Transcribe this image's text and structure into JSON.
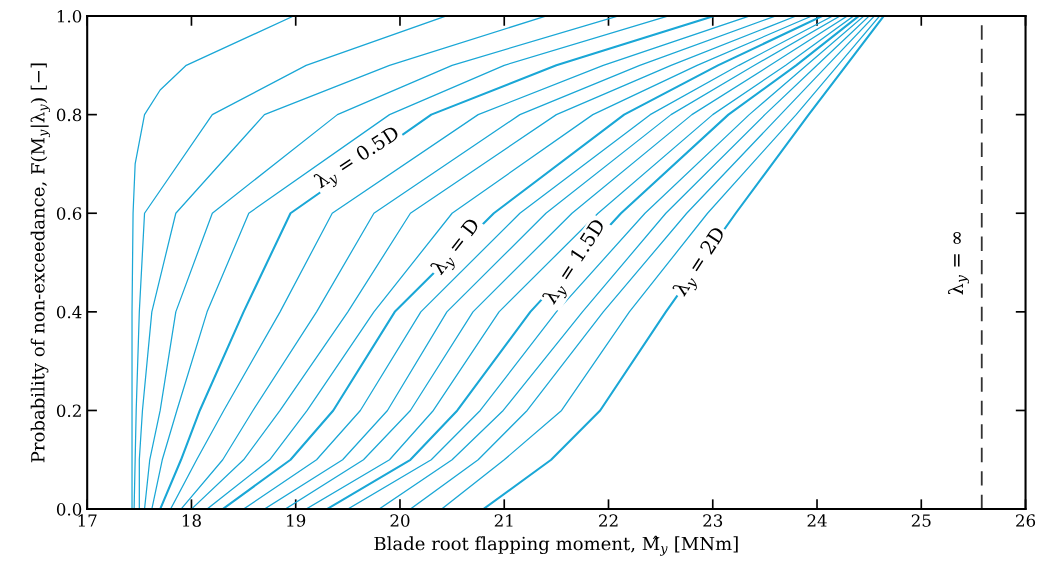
{
  "chart_data": {
    "type": "line",
    "xlabel": "Blade root flapping moment, M̂$_{y}$ [MNm]",
    "ylabel": "Probability of non-exceedance, F(M$_{y}$|λ$_{y}$) [−]",
    "xlim": [
      17,
      26
    ],
    "xticks": [
      17,
      18,
      19,
      20,
      21,
      22,
      23,
      24,
      25,
      26
    ],
    "ylim": [
      0,
      1
    ],
    "yticks": [
      {
        "value": 0,
        "label": "0.0"
      },
      {
        "value": 0.2,
        "label": "0.2"
      },
      {
        "value": 0.4,
        "label": "0.4"
      },
      {
        "value": 0.6,
        "label": "0.6"
      },
      {
        "value": 0.8,
        "label": "0.8"
      },
      {
        "value": 1.0,
        "label": "1.0"
      }
    ],
    "grid": false,
    "marker": "none",
    "line_style": "solid",
    "series": [
      {
        "color": "#1aa7d6",
        "x": [
          17.43,
          17.43,
          17.43,
          17.44,
          17.46,
          17.55,
          17.7,
          17.95,
          18.98
        ],
        "values": [
          0,
          0.2,
          0.4,
          0.6,
          0.7,
          0.8,
          0.85,
          0.9,
          1.0
        ]
      },
      {
        "color": "#1aa7d6",
        "x": [
          17.45,
          17.46,
          17.47,
          17.5,
          17.55,
          18.2,
          19.1,
          20.44
        ],
        "values": [
          0,
          0.1,
          0.2,
          0.4,
          0.6,
          0.8,
          0.9,
          1.0
        ]
      },
      {
        "color": "#1aa7d6",
        "x": [
          17.5,
          17.5,
          17.53,
          17.62,
          17.85,
          18.7,
          19.9,
          21.4
        ],
        "values": [
          0,
          0.1,
          0.2,
          0.4,
          0.6,
          0.8,
          0.9,
          1.0
        ]
      },
      {
        "color": "#1aa7d6",
        "x": [
          17.55,
          17.6,
          17.7,
          17.85,
          18.2,
          19.4,
          20.5,
          22.09
        ],
        "values": [
          0,
          0.1,
          0.2,
          0.4,
          0.6,
          0.8,
          0.9,
          1.0
        ]
      },
      {
        "color": "#1aa7d6",
        "x": [
          17.62,
          17.72,
          17.86,
          18.15,
          18.55,
          19.9,
          21.0,
          22.57
        ],
        "values": [
          0,
          0.1,
          0.2,
          0.4,
          0.6,
          0.8,
          0.9,
          1.0
        ]
      },
      {
        "color": "#1aa7d6",
        "x": [
          17.7,
          17.9,
          18.08,
          18.5,
          18.95,
          20.3,
          21.5,
          23.01
        ],
        "values": [
          0,
          0.1,
          0.2,
          0.4,
          0.6,
          0.8,
          0.9,
          1.0
        ]
      },
      {
        "color": "#1aa7d6",
        "x": [
          17.8,
          18.05,
          18.31,
          18.85,
          19.35,
          20.75,
          21.95,
          23.35
        ],
        "values": [
          0,
          0.1,
          0.2,
          0.4,
          0.6,
          0.8,
          0.9,
          1.0
        ]
      },
      {
        "color": "#1aa7d6",
        "x": [
          17.9,
          18.3,
          18.59,
          19.2,
          19.75,
          21.15,
          22.3,
          23.6
        ],
        "values": [
          0,
          0.1,
          0.2,
          0.4,
          0.6,
          0.8,
          0.9,
          1.0
        ]
      },
      {
        "color": "#1aa7d6",
        "x": [
          18.0,
          18.5,
          18.85,
          19.5,
          20.1,
          21.5,
          22.6,
          23.8
        ],
        "values": [
          0,
          0.1,
          0.2,
          0.4,
          0.6,
          0.8,
          0.9,
          1.0
        ]
      },
      {
        "color": "#1aa7d6",
        "x": [
          18.15,
          18.75,
          19.11,
          19.75,
          20.5,
          21.85,
          22.85,
          23.95
        ],
        "values": [
          0,
          0.1,
          0.2,
          0.4,
          0.6,
          0.8,
          0.9,
          1.0
        ]
      },
      {
        "color": "#1aa7d6",
        "x": [
          18.3,
          18.95,
          19.36,
          19.95,
          20.9,
          22.15,
          23.05,
          24.05
        ],
        "values": [
          0,
          0.1,
          0.2,
          0.4,
          0.6,
          0.8,
          0.9,
          1.0
        ]
      },
      {
        "color": "#1aa7d6",
        "x": [
          18.5,
          19.2,
          19.62,
          20.2,
          21.15,
          22.4,
          23.25,
          24.15
        ],
        "values": [
          0,
          0.1,
          0.2,
          0.4,
          0.6,
          0.8,
          0.9,
          1.0
        ]
      },
      {
        "color": "#1aa7d6",
        "x": [
          18.7,
          19.45,
          19.88,
          20.45,
          21.4,
          22.6,
          23.4,
          24.22
        ],
        "values": [
          0,
          0.1,
          0.2,
          0.4,
          0.6,
          0.8,
          0.9,
          1.0
        ]
      },
      {
        "color": "#1aa7d6",
        "x": [
          18.9,
          19.65,
          20.1,
          20.7,
          21.65,
          22.8,
          23.55,
          24.29
        ],
        "values": [
          0,
          0.1,
          0.2,
          0.4,
          0.6,
          0.8,
          0.9,
          1.0
        ]
      },
      {
        "color": "#1aa7d6",
        "x": [
          19.1,
          19.9,
          20.32,
          20.95,
          21.9,
          23.0,
          23.7,
          24.35
        ],
        "values": [
          0,
          0.1,
          0.2,
          0.4,
          0.6,
          0.8,
          0.9,
          1.0
        ]
      },
      {
        "color": "#1aa7d6",
        "x": [
          19.3,
          20.1,
          20.55,
          21.25,
          22.12,
          23.15,
          23.8,
          24.4
        ],
        "values": [
          0,
          0.1,
          0.2,
          0.4,
          0.6,
          0.8,
          0.9,
          1.0
        ]
      },
      {
        "color": "#1aa7d6",
        "x": [
          19.5,
          20.3,
          20.77,
          21.5,
          22.35,
          23.35,
          23.9,
          24.45
        ],
        "values": [
          0,
          0.1,
          0.2,
          0.4,
          0.6,
          0.8,
          0.9,
          1.0
        ]
      },
      {
        "color": "#1aa7d6",
        "x": [
          19.8,
          20.5,
          20.99,
          21.75,
          22.55,
          23.5,
          24.0,
          24.5
        ],
        "values": [
          0,
          0.1,
          0.2,
          0.4,
          0.6,
          0.8,
          0.9,
          1.0
        ]
      },
      {
        "color": "#1aa7d6",
        "x": [
          20.1,
          20.75,
          21.22,
          21.95,
          22.75,
          23.65,
          24.1,
          24.55
        ],
        "values": [
          0,
          0.1,
          0.2,
          0.4,
          0.6,
          0.8,
          0.9,
          1.0
        ]
      },
      {
        "color": "#1aa7d6",
        "x": [
          20.4,
          21.0,
          21.55,
          22.2,
          22.95,
          23.8,
          24.2,
          24.6
        ],
        "values": [
          0,
          0.1,
          0.2,
          0.4,
          0.6,
          0.8,
          0.9,
          1.0
        ]
      },
      {
        "color": "#1aa7d6",
        "x": [
          20.8,
          21.45,
          21.92,
          22.55,
          23.22,
          23.92,
          24.28,
          24.64
        ],
        "values": [
          0,
          0.1,
          0.2,
          0.4,
          0.6,
          0.8,
          0.9,
          1.0
        ]
      }
    ],
    "ref_lines": [
      {
        "axis": "x",
        "value": 25.58,
        "label": "λ$_{y}$ = ∞",
        "color": "#333333",
        "line_style": "dashed"
      }
    ],
    "annotations": [
      {
        "text": "λ$_{y}$ = 0.5D",
        "x": 19.6,
        "y": 0.71
      },
      {
        "text": "λ$_{y}$ = D",
        "x": 20.55,
        "y": 0.53
      },
      {
        "text": "λ$_{y}$ = 1.5D",
        "x": 21.69,
        "y": 0.5
      },
      {
        "text": "λ$_{y}$ = 2D",
        "x": 22.89,
        "y": 0.5
      }
    ]
  }
}
